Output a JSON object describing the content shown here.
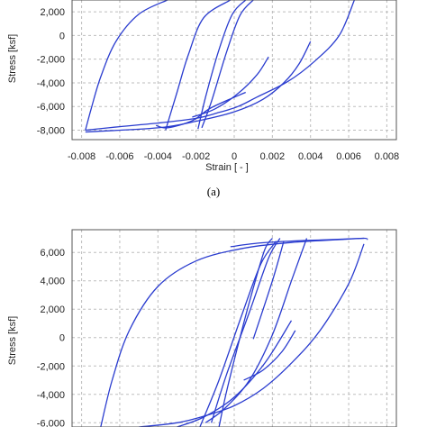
{
  "colors": {
    "curve": "#2a3ccf",
    "grid": "#bdbdbd",
    "axis": "#555555"
  },
  "chart_data": [
    {
      "type": "line",
      "panel_label": "(a)",
      "xlabel": "Strain [ - ]",
      "ylabel": "Stress [ksf]",
      "xlim": [
        -0.0085,
        0.0085
      ],
      "ylim": [
        -8800,
        3000
      ],
      "xticks": [
        -0.008,
        -0.006,
        -0.004,
        -0.002,
        0,
        0.002,
        0.004,
        0.006,
        0.008
      ],
      "xtick_labels": [
        "-0.008",
        "-0.006",
        "-0.004",
        "-0.002",
        "0",
        "0.002",
        "0.004",
        "0.006",
        "0.008"
      ],
      "yticks": [
        2000,
        0,
        -2000,
        -4000,
        -6000,
        -8000
      ],
      "ytick_labels": [
        "2,000",
        "0",
        "-2,000",
        "-4,000",
        "-6,000",
        "-8,000"
      ],
      "grid": true,
      "series": [
        {
          "x": [
            -0.0078,
            -0.0075,
            -0.007,
            -0.0062,
            -0.005,
            -0.0035
          ],
          "y": [
            -8000,
            -6200,
            -3500,
            -500,
            1800,
            3000
          ]
        },
        {
          "x": [
            -0.0078,
            -0.006,
            -0.004,
            -0.002,
            -0.0008,
            0.0002,
            0.0012,
            0.0028,
            0.0042,
            0.0055,
            0.0063
          ],
          "y": [
            -8000,
            -7700,
            -7400,
            -7000,
            -6500,
            -6000,
            -5200,
            -3900,
            -2200,
            0,
            3000
          ]
        },
        {
          "x": [
            -0.0078,
            -0.004,
            -0.002,
            0.0,
            0.0015,
            0.0026,
            0.0034,
            0.004
          ],
          "y": [
            -8150,
            -7800,
            -7250,
            -6450,
            -5400,
            -4000,
            -2400,
            -500
          ]
        },
        {
          "x": [
            -0.0036,
            -0.003,
            -0.0024,
            -0.0016,
            -0.0002
          ],
          "y": [
            -8000,
            -4800,
            -1600,
            1500,
            3000
          ]
        },
        {
          "x": [
            -0.0041,
            -0.0035,
            -0.0022,
            -0.0012,
            0.0006
          ],
          "y": [
            -7600,
            -7800,
            -7200,
            -6100,
            -4800
          ]
        },
        {
          "x": [
            -0.0019,
            -0.0015,
            -0.0008,
            -0.0001,
            0.0006
          ],
          "y": [
            -7900,
            -5200,
            -1200,
            1800,
            3000
          ]
        },
        {
          "x": [
            -0.0022,
            -0.001,
            0.0002,
            0.0012,
            0.0018
          ],
          "y": [
            -6900,
            -6200,
            -4900,
            -3300,
            -1800
          ]
        },
        {
          "x": [
            -0.0017,
            -0.0012,
            -0.0004,
            0.0003,
            0.001
          ],
          "y": [
            -7800,
            -5600,
            -1400,
            1700,
            3000
          ]
        }
      ]
    },
    {
      "type": "line",
      "panel_label": "",
      "xlabel": "",
      "ylabel": "Stress [ksf]",
      "xlim": [
        -0.0085,
        0.0085
      ],
      "ylim": [
        -6300,
        7600
      ],
      "xticks": [
        -0.008,
        -0.006,
        -0.004,
        -0.002,
        0,
        0.002,
        0.004,
        0.006,
        0.008
      ],
      "xtick_labels": [],
      "yticks": [
        6000,
        4000,
        2000,
        0,
        -2000,
        -4000,
        -6000
      ],
      "ytick_labels": [
        "6,000",
        "4,000",
        "2,000",
        "0",
        "-2,000",
        "-4,000",
        "-6,000"
      ],
      "grid": true,
      "series": [
        {
          "x": [
            -0.007,
            -0.0064,
            -0.0055,
            -0.004,
            -0.002,
            0.0005,
            0.003,
            0.0055,
            0.0068,
            0.007
          ],
          "y": [
            -6300,
            -3000,
            500,
            3600,
            5400,
            6300,
            6700,
            6900,
            7000,
            6900
          ]
        },
        {
          "x": [
            -0.005,
            -0.003,
            -0.0015,
            0.0,
            0.0015,
            0.003,
            0.0045,
            0.006,
            0.0068
          ],
          "y": [
            -6300,
            -6000,
            -5500,
            -4800,
            -3600,
            -1800,
            500,
            3800,
            6600
          ]
        },
        {
          "x": [
            -0.0002,
            0.0012,
            0.003,
            0.005,
            0.0068
          ],
          "y": [
            6400,
            6650,
            6800,
            6900,
            7000
          ]
        },
        {
          "x": [
            -0.0008,
            -0.0004,
            0.0003,
            0.001,
            0.0016,
            0.002
          ],
          "y": [
            -6300,
            -3800,
            0,
            3500,
            6200,
            7000
          ]
        },
        {
          "x": [
            0.0005,
            0.0015,
            0.0025,
            0.0032
          ],
          "y": [
            -3000,
            -2300,
            -1000,
            500
          ]
        },
        {
          "x": [
            -0.0015,
            -0.0005,
            0.0008,
            0.002,
            0.003,
            0.0038
          ],
          "y": [
            -6000,
            -5000,
            -3000,
            200,
            4000,
            7000
          ]
        },
        {
          "x": [
            -0.003,
            -0.0016,
            0.0,
            0.0016,
            0.003
          ],
          "y": [
            -6300,
            -5600,
            -4200,
            -1800,
            1200
          ]
        },
        {
          "x": [
            -0.0018,
            -0.0008,
            0.0004,
            0.0014,
            0.0022
          ],
          "y": [
            -6300,
            -3000,
            1600,
            5200,
            6800
          ]
        },
        {
          "x": [
            -0.0012,
            -0.0004,
            0.0008,
            0.0018,
            0.0024
          ],
          "y": [
            -6000,
            -2600,
            1800,
            5600,
            7000
          ]
        },
        {
          "x": [
            0.001,
            0.002,
            0.0026
          ],
          "y": [
            -100,
            4000,
            6800
          ]
        }
      ]
    }
  ]
}
